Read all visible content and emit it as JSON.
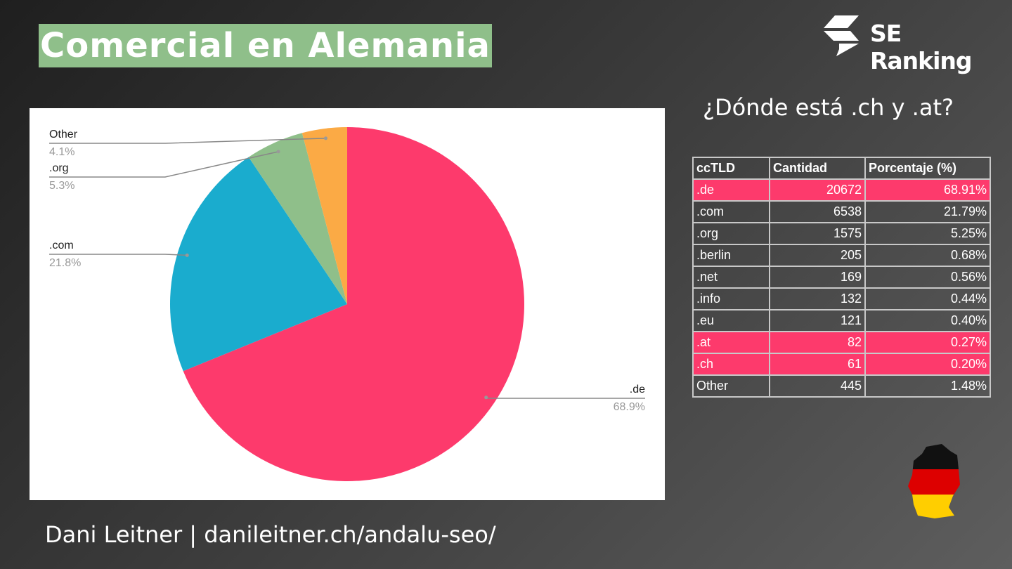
{
  "header": {
    "title": "Comercial en Alemania",
    "logo": "SE Ranking"
  },
  "chart_data": {
    "type": "pie",
    "categories": [
      ".de",
      ".com",
      ".org",
      "Other"
    ],
    "values": [
      68.9,
      21.8,
      5.3,
      4.1
    ],
    "value_labels": [
      "68.9%",
      "21.8%",
      "5.3%",
      "4.1%"
    ],
    "colors": [
      "#fd3a6c",
      "#1aacce",
      "#8fbf8a",
      "#fbaa45"
    ]
  },
  "table": {
    "title": "¿Dónde está .ch y .at?",
    "columns": [
      "ccTLD",
      "Cantidad",
      "Porcentaje (%)"
    ],
    "rows": [
      [
        ".de",
        "20672",
        "68.91%"
      ],
      [
        ".com",
        "6538",
        "21.79%"
      ],
      [
        ".org",
        "1575",
        "5.25%"
      ],
      [
        ".berlin",
        "205",
        "0.68%"
      ],
      [
        ".net",
        "169",
        "0.56%"
      ],
      [
        ".info",
        "132",
        "0.44%"
      ],
      [
        ".eu",
        "121",
        "0.40%"
      ],
      [
        ".at",
        "82",
        "0.27%"
      ],
      [
        ".ch",
        "61",
        "0.20%"
      ],
      [
        "Other",
        "445",
        "1.48%"
      ]
    ],
    "highlighted_rows": [
      0,
      7,
      8
    ],
    "highlight_color": "#fd3a6c"
  },
  "footer": {
    "text": "Dani Leitner | danileitner.ch/andalu-seo/"
  }
}
